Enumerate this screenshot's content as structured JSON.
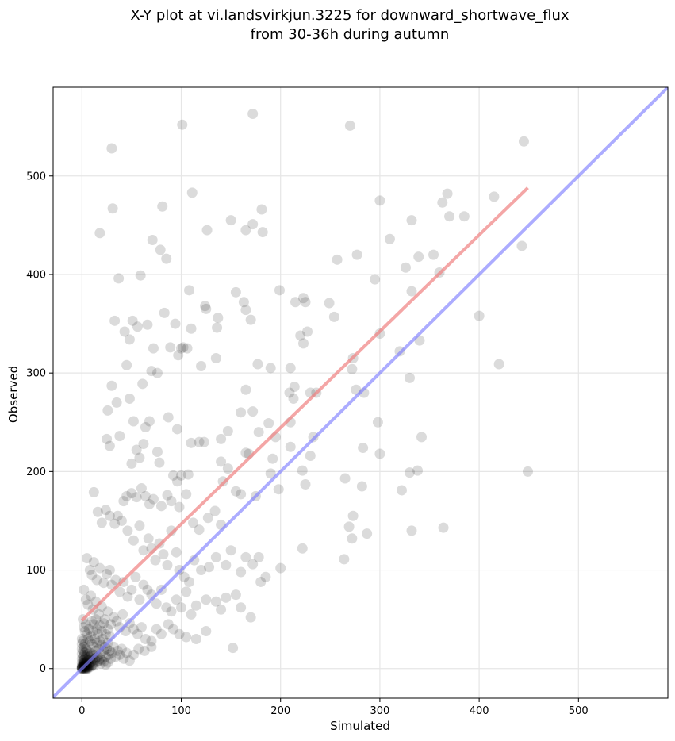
{
  "chart_data": {
    "type": "scatter",
    "title": "X-Y plot at vi.landsvirkjun.3225 for downward_shortwave_flux",
    "subtitle": "from 30-36h during autumn",
    "xlabel": "Simulated",
    "ylabel": "Observed",
    "xlim": [
      -29,
      590
    ],
    "ylim": [
      -30,
      590
    ],
    "x_ticks": [
      0,
      100,
      200,
      300,
      400,
      500
    ],
    "y_ticks": [
      0,
      100,
      200,
      300,
      400,
      500
    ],
    "x_tick_labels": [
      "0",
      "100",
      "200",
      "300",
      "400",
      "500"
    ],
    "y_tick_labels": [
      "0",
      "100",
      "200",
      "300",
      "400",
      "500"
    ],
    "grid": true,
    "point_color": "#000000",
    "point_opacity": 0.14,
    "fit_line": {
      "color": "#f08080",
      "x": [
        0,
        449
      ],
      "y": [
        49,
        488
      ]
    },
    "identity_line": {
      "color": "#8080ff",
      "x": [
        -29,
        590
      ],
      "y": [
        -29,
        590
      ]
    },
    "points": [
      [
        30,
        528
      ],
      [
        101,
        552
      ],
      [
        172,
        563
      ],
      [
        270,
        551
      ],
      [
        445,
        535
      ],
      [
        31,
        467
      ],
      [
        81,
        469
      ],
      [
        111,
        483
      ],
      [
        150,
        455
      ],
      [
        172,
        451
      ],
      [
        165,
        445
      ],
      [
        181,
        466
      ],
      [
        182,
        443
      ],
      [
        126,
        445
      ],
      [
        300,
        475
      ],
      [
        363,
        473
      ],
      [
        368,
        482
      ],
      [
        370,
        459
      ],
      [
        385,
        459
      ],
      [
        415,
        479
      ],
      [
        443,
        429
      ],
      [
        18,
        442
      ],
      [
        71,
        435
      ],
      [
        79,
        425
      ],
      [
        85,
        416
      ],
      [
        37,
        396
      ],
      [
        59,
        399
      ],
      [
        199,
        384
      ],
      [
        108,
        384
      ],
      [
        257,
        415
      ],
      [
        277,
        420
      ],
      [
        295,
        395
      ],
      [
        310,
        436
      ],
      [
        326,
        407
      ],
      [
        332,
        455
      ],
      [
        339,
        418
      ],
      [
        354,
        420
      ],
      [
        360,
        402
      ],
      [
        33,
        353
      ],
      [
        43,
        342
      ],
      [
        48,
        334
      ],
      [
        51,
        353
      ],
      [
        56,
        347
      ],
      [
        66,
        349
      ],
      [
        83,
        361
      ],
      [
        94,
        350
      ],
      [
        102,
        326
      ],
      [
        110,
        345
      ],
      [
        136,
        346
      ],
      [
        137,
        356
      ],
      [
        124,
        368
      ],
      [
        125,
        365
      ],
      [
        155,
        382
      ],
      [
        163,
        372
      ],
      [
        165,
        364
      ],
      [
        170,
        354
      ],
      [
        215,
        372
      ],
      [
        223,
        376
      ],
      [
        225,
        372
      ],
      [
        220,
        338
      ],
      [
        223,
        330
      ],
      [
        227,
        342
      ],
      [
        249,
        371
      ],
      [
        254,
        357
      ],
      [
        300,
        340
      ],
      [
        332,
        383
      ],
      [
        340,
        333
      ],
      [
        400,
        358
      ],
      [
        420,
        309
      ],
      [
        330,
        295
      ],
      [
        320,
        322
      ],
      [
        273,
        315
      ],
      [
        272,
        304
      ],
      [
        276,
        283
      ],
      [
        284,
        280
      ],
      [
        45,
        308
      ],
      [
        72,
        325
      ],
      [
        76,
        300
      ],
      [
        89,
        326
      ],
      [
        100,
        325
      ],
      [
        106,
        325
      ],
      [
        97,
        318
      ],
      [
        70,
        302
      ],
      [
        61,
        289
      ],
      [
        30,
        287
      ],
      [
        35,
        270
      ],
      [
        48,
        274
      ],
      [
        26,
        262
      ],
      [
        52,
        251
      ],
      [
        64,
        245
      ],
      [
        68,
        251
      ],
      [
        87,
        255
      ],
      [
        96,
        243
      ],
      [
        120,
        307
      ],
      [
        135,
        315
      ],
      [
        177,
        309
      ],
      [
        190,
        305
      ],
      [
        210,
        305
      ],
      [
        214,
        286
      ],
      [
        213,
        274
      ],
      [
        230,
        280
      ],
      [
        236,
        280
      ],
      [
        165,
        283
      ],
      [
        160,
        260
      ],
      [
        172,
        261
      ],
      [
        178,
        240
      ],
      [
        188,
        249
      ],
      [
        195,
        235
      ],
      [
        209,
        280
      ],
      [
        210,
        250
      ],
      [
        25,
        233
      ],
      [
        28,
        226
      ],
      [
        38,
        236
      ],
      [
        50,
        208
      ],
      [
        55,
        222
      ],
      [
        58,
        214
      ],
      [
        62,
        228
      ],
      [
        76,
        220
      ],
      [
        78,
        209
      ],
      [
        92,
        196
      ],
      [
        96,
        190
      ],
      [
        100,
        196
      ],
      [
        107,
        197
      ],
      [
        110,
        229
      ],
      [
        118,
        230
      ],
      [
        123,
        230
      ],
      [
        140,
        233
      ],
      [
        147,
        241
      ],
      [
        140,
        210
      ],
      [
        147,
        203
      ],
      [
        142,
        190
      ],
      [
        165,
        219
      ],
      [
        168,
        218
      ],
      [
        190,
        198
      ],
      [
        192,
        213
      ],
      [
        210,
        225
      ],
      [
        225,
        187
      ],
      [
        230,
        216
      ],
      [
        233,
        235
      ],
      [
        265,
        193
      ],
      [
        283,
        224
      ],
      [
        282,
        185
      ],
      [
        300,
        218
      ],
      [
        298,
        250
      ],
      [
        322,
        181
      ],
      [
        330,
        199
      ],
      [
        338,
        201
      ],
      [
        342,
        235
      ],
      [
        449,
        200
      ],
      [
        12,
        179
      ],
      [
        16,
        159
      ],
      [
        24,
        161
      ],
      [
        20,
        148
      ],
      [
        28,
        155
      ],
      [
        33,
        147
      ],
      [
        36,
        155
      ],
      [
        42,
        170
      ],
      [
        45,
        175
      ],
      [
        50,
        178
      ],
      [
        55,
        174
      ],
      [
        60,
        183
      ],
      [
        64,
        175
      ],
      [
        68,
        167
      ],
      [
        72,
        172
      ],
      [
        80,
        165
      ],
      [
        86,
        176
      ],
      [
        90,
        170
      ],
      [
        98,
        164
      ],
      [
        105,
        177
      ],
      [
        112,
        148
      ],
      [
        118,
        141
      ],
      [
        127,
        153
      ],
      [
        134,
        160
      ],
      [
        140,
        146
      ],
      [
        155,
        180
      ],
      [
        160,
        177
      ],
      [
        175,
        175
      ],
      [
        198,
        182
      ],
      [
        222,
        201
      ],
      [
        40,
        150
      ],
      [
        46,
        140
      ],
      [
        52,
        130
      ],
      [
        58,
        145
      ],
      [
        62,
        120
      ],
      [
        67,
        132
      ],
      [
        70,
        122
      ],
      [
        74,
        110
      ],
      [
        78,
        127
      ],
      [
        82,
        116
      ],
      [
        86,
        105
      ],
      [
        90,
        140
      ],
      [
        95,
        118
      ],
      [
        98,
        100
      ],
      [
        103,
        93
      ],
      [
        108,
        88
      ],
      [
        113,
        110
      ],
      [
        120,
        100
      ],
      [
        128,
        103
      ],
      [
        135,
        113
      ],
      [
        145,
        105
      ],
      [
        150,
        120
      ],
      [
        160,
        98
      ],
      [
        165,
        113
      ],
      [
        172,
        106
      ],
      [
        178,
        113
      ],
      [
        185,
        93
      ],
      [
        200,
        102
      ],
      [
        222,
        122
      ],
      [
        264,
        111
      ],
      [
        269,
        144
      ],
      [
        272,
        132
      ],
      [
        273,
        155
      ],
      [
        287,
        137
      ],
      [
        332,
        140
      ],
      [
        364,
        143
      ],
      [
        5,
        112
      ],
      [
        8,
        100
      ],
      [
        10,
        95
      ],
      [
        12,
        108
      ],
      [
        15,
        90
      ],
      [
        18,
        102
      ],
      [
        22,
        87
      ],
      [
        25,
        96
      ],
      [
        28,
        100
      ],
      [
        30,
        85
      ],
      [
        34,
        90
      ],
      [
        38,
        78
      ],
      [
        42,
        88
      ],
      [
        46,
        73
      ],
      [
        50,
        80
      ],
      [
        54,
        93
      ],
      [
        58,
        70
      ],
      [
        62,
        85
      ],
      [
        66,
        80
      ],
      [
        70,
        75
      ],
      [
        75,
        66
      ],
      [
        80,
        80
      ],
      [
        85,
        62
      ],
      [
        90,
        58
      ],
      [
        95,
        70
      ],
      [
        100,
        62
      ],
      [
        105,
        78
      ],
      [
        110,
        55
      ],
      [
        115,
        64
      ],
      [
        125,
        70
      ],
      [
        135,
        68
      ],
      [
        140,
        60
      ],
      [
        145,
        72
      ],
      [
        155,
        75
      ],
      [
        160,
        62
      ],
      [
        170,
        52
      ],
      [
        180,
        88
      ],
      [
        2,
        80
      ],
      [
        4,
        70
      ],
      [
        6,
        65
      ],
      [
        9,
        74
      ],
      [
        11,
        60
      ],
      [
        14,
        68
      ],
      [
        17,
        55
      ],
      [
        20,
        63
      ],
      [
        23,
        50
      ],
      [
        26,
        58
      ],
      [
        29,
        45
      ],
      [
        32,
        52
      ],
      [
        35,
        48
      ],
      [
        38,
        42
      ],
      [
        41,
        55
      ],
      [
        44,
        38
      ],
      [
        48,
        46
      ],
      [
        52,
        40
      ],
      [
        56,
        35
      ],
      [
        60,
        42
      ],
      [
        64,
        30
      ],
      [
        70,
        28
      ],
      [
        75,
        40
      ],
      [
        80,
        35
      ],
      [
        87,
        45
      ],
      [
        92,
        40
      ],
      [
        98,
        35
      ],
      [
        105,
        32
      ],
      [
        115,
        30
      ],
      [
        125,
        38
      ],
      [
        152,
        21
      ],
      [
        1,
        50
      ],
      [
        2,
        42
      ],
      [
        3,
        38
      ],
      [
        4,
        45
      ],
      [
        5,
        35
      ],
      [
        6,
        30
      ],
      [
        7,
        40
      ],
      [
        8,
        28
      ],
      [
        9,
        33
      ],
      [
        10,
        25
      ],
      [
        11,
        38
      ],
      [
        12,
        22
      ],
      [
        13,
        30
      ],
      [
        14,
        18
      ],
      [
        15,
        26
      ],
      [
        16,
        35
      ],
      [
        17,
        20
      ],
      [
        18,
        28
      ],
      [
        19,
        15
      ],
      [
        20,
        24
      ],
      [
        21,
        30
      ],
      [
        22,
        18
      ],
      [
        23,
        22
      ],
      [
        24,
        12
      ],
      [
        25,
        20
      ],
      [
        26,
        26
      ],
      [
        27,
        14
      ],
      [
        28,
        18
      ],
      [
        29,
        10
      ],
      [
        30,
        16
      ],
      [
        32,
        22
      ],
      [
        34,
        12
      ],
      [
        36,
        18
      ],
      [
        38,
        14
      ],
      [
        40,
        20
      ],
      [
        42,
        10
      ],
      [
        45,
        16
      ],
      [
        48,
        8
      ],
      [
        52,
        14
      ],
      [
        57,
        20
      ],
      [
        63,
        18
      ],
      [
        70,
        22
      ],
      [
        0,
        30
      ],
      [
        0,
        25
      ],
      [
        0,
        20
      ],
      [
        0,
        15
      ],
      [
        0,
        10
      ],
      [
        0,
        6
      ],
      [
        0,
        3
      ],
      [
        1,
        28
      ],
      [
        1,
        18
      ],
      [
        1,
        12
      ],
      [
        1,
        8
      ],
      [
        1,
        4
      ],
      [
        2,
        22
      ],
      [
        2,
        14
      ],
      [
        2,
        9
      ],
      [
        2,
        5
      ],
      [
        3,
        25
      ],
      [
        3,
        16
      ],
      [
        3,
        10
      ],
      [
        3,
        6
      ],
      [
        4,
        20
      ],
      [
        4,
        12
      ],
      [
        4,
        7
      ],
      [
        5,
        18
      ],
      [
        5,
        10
      ],
      [
        5,
        4
      ],
      [
        6,
        15
      ],
      [
        6,
        8
      ],
      [
        7,
        12
      ],
      [
        7,
        5
      ],
      [
        8,
        16
      ],
      [
        8,
        9
      ],
      [
        9,
        13
      ],
      [
        9,
        6
      ],
      [
        10,
        15
      ],
      [
        10,
        8
      ],
      [
        11,
        10
      ],
      [
        12,
        14
      ],
      [
        12,
        6
      ],
      [
        13,
        9
      ],
      [
        14,
        11
      ],
      [
        15,
        7
      ],
      [
        16,
        12
      ],
      [
        17,
        8
      ],
      [
        18,
        10
      ],
      [
        19,
        5
      ],
      [
        20,
        9
      ],
      [
        22,
        7
      ],
      [
        24,
        4
      ],
      [
        26,
        6
      ],
      [
        0,
        0
      ],
      [
        0,
        0
      ],
      [
        0,
        0
      ],
      [
        0,
        1
      ],
      [
        0,
        1
      ],
      [
        1,
        0
      ],
      [
        1,
        1
      ],
      [
        1,
        2
      ],
      [
        2,
        0
      ],
      [
        2,
        1
      ],
      [
        2,
        2
      ],
      [
        3,
        0
      ],
      [
        3,
        1
      ],
      [
        3,
        2
      ],
      [
        4,
        0
      ],
      [
        4,
        1
      ],
      [
        4,
        3
      ],
      [
        5,
        1
      ],
      [
        5,
        2
      ],
      [
        6,
        1
      ],
      [
        6,
        2
      ],
      [
        0,
        2
      ],
      [
        0,
        1
      ],
      [
        1,
        3
      ],
      [
        2,
        3
      ],
      [
        3,
        3
      ],
      [
        4,
        2
      ],
      [
        5,
        0
      ],
      [
        6,
        0
      ],
      [
        7,
        2
      ],
      [
        8,
        3
      ],
      [
        9,
        2
      ],
      [
        10,
        3
      ],
      [
        11,
        4
      ],
      [
        12,
        3
      ],
      [
        1,
        5
      ],
      [
        2,
        6
      ],
      [
        3,
        4
      ],
      [
        4,
        5
      ],
      [
        5,
        6
      ],
      [
        15,
        40
      ],
      [
        18,
        44
      ],
      [
        20,
        38
      ],
      [
        22,
        46
      ],
      [
        24,
        35
      ],
      [
        26,
        40
      ],
      [
        28,
        33
      ],
      [
        12,
        45
      ],
      [
        10,
        48
      ],
      [
        14,
        50
      ]
    ]
  }
}
